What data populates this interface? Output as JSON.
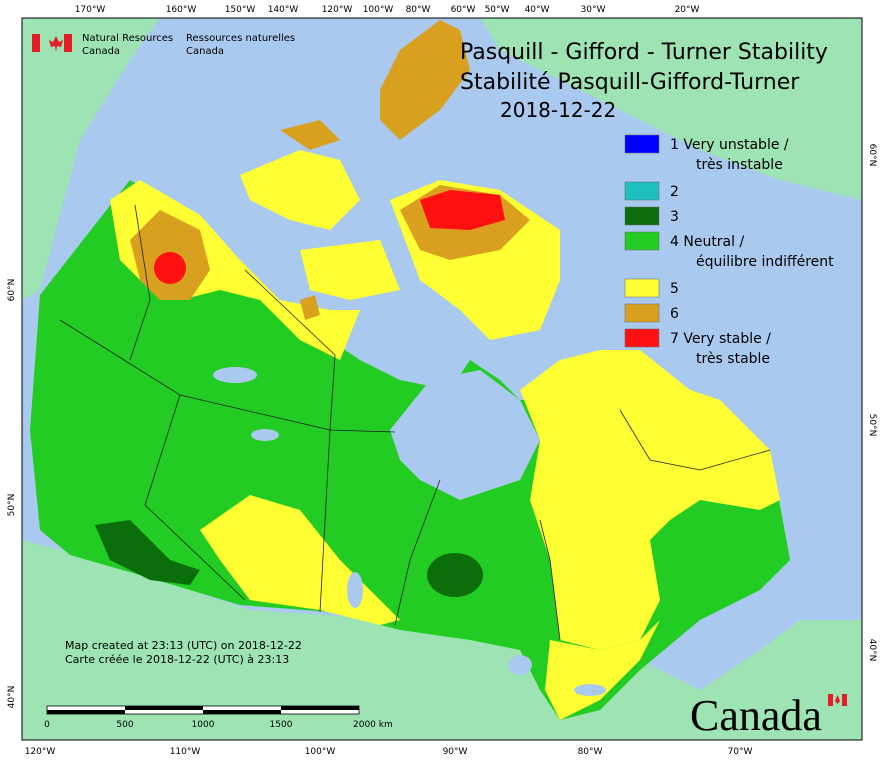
{
  "header": {
    "agency_en": [
      "Natural Resources",
      "Canada"
    ],
    "agency_fr": [
      "Ressources naturelles",
      "Canada"
    ]
  },
  "title": {
    "lines": [
      "Pasquill - Gifford - Turner Stability",
      "Stabilité Pasquill-Gifford-Turner"
    ],
    "date": "2018-12-22"
  },
  "legend": [
    {
      "color": "#0000ff",
      "lines": [
        "1 Very unstable /",
        "très instable"
      ]
    },
    {
      "color": "#1ebfbf",
      "lines": [
        "2"
      ]
    },
    {
      "color": "#0b6e0b",
      "lines": [
        "3"
      ]
    },
    {
      "color": "#22cc22",
      "lines": [
        "4 Neutral /",
        "équilibre indifférent"
      ]
    },
    {
      "color": "#ffff33",
      "lines": [
        "5"
      ]
    },
    {
      "color": "#d9a020",
      "lines": [
        "6"
      ]
    },
    {
      "color": "#ff1111",
      "lines": [
        "7 Very stable /",
        "très stable"
      ]
    }
  ],
  "graticule": {
    "top": [
      "170°W",
      "160°W",
      "150°W",
      "140°W",
      "120°W",
      "100°W",
      "80°W",
      "60°W",
      "50°W",
      "40°W",
      "30°W",
      "20°W"
    ],
    "bottom": [
      "120°W",
      "110°W",
      "100°W",
      "90°W",
      "80°W",
      "70°W"
    ],
    "left": [
      "60°N",
      "50°N",
      "40°N"
    ],
    "right": [
      "60°N",
      "50°N",
      "40°N"
    ]
  },
  "notes": [
    "Map created at 23:13 (UTC) on 2018-12-22",
    "Carte créée le 2018-12-22 (UTC) à 23:13"
  ],
  "scale": [
    "0",
    "500",
    "1000",
    "1500",
    "2000 km"
  ],
  "wordmark": "Canada"
}
